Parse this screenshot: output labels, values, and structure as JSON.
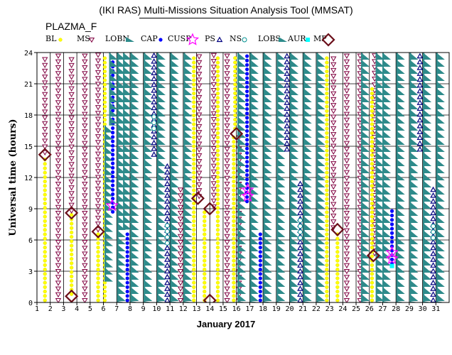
{
  "header": {
    "title": "(IKI RAS) Multi-Missions Situation Analysis Tool (MMSAT)",
    "dataset": "PLAZMA_F"
  },
  "chart_data": {
    "type": "scatter",
    "xlabel": "January 2017",
    "ylabel": "Universal time (hours)",
    "xlim": [
      1,
      32
    ],
    "ylim": [
      0,
      24
    ],
    "x_ticks": [
      1,
      2,
      3,
      4,
      5,
      6,
      7,
      8,
      9,
      10,
      11,
      12,
      13,
      14,
      15,
      16,
      17,
      18,
      19,
      20,
      21,
      22,
      23,
      24,
      25,
      26,
      27,
      28,
      29,
      30,
      31
    ],
    "y_ticks": [
      0,
      3,
      6,
      9,
      12,
      15,
      18,
      21,
      24
    ],
    "grid": true,
    "legend_position": "top",
    "legend": [
      {
        "code": "BL",
        "label": "BL",
        "color": "#ffff00",
        "marker": "dot"
      },
      {
        "code": "MS",
        "label": "MS",
        "color": "#800040",
        "marker": "triangle-down"
      },
      {
        "code": "LOBN",
        "label": "LOBN",
        "color": "#2e8b8b",
        "marker": "wedge"
      },
      {
        "code": "CAP",
        "label": "CAP",
        "color": "#0000ff",
        "marker": "filled-dot"
      },
      {
        "code": "CUSP",
        "label": "CUSP",
        "color": "#ff00ff",
        "marker": "star"
      },
      {
        "code": "PS",
        "label": "PS",
        "color": "#000080",
        "marker": "triangle-up"
      },
      {
        "code": "NS",
        "label": "NS",
        "color": "#009090",
        "marker": "circle"
      },
      {
        "code": "LOBS",
        "label": "LOBS",
        "color": "#2e8b8b",
        "marker": "wedge"
      },
      {
        "code": "AUR",
        "label": "AUR",
        "color": "#00ffff",
        "marker": "square"
      },
      {
        "code": "MP",
        "label": "MP",
        "color": "#6b0f1a",
        "marker": "diamond"
      }
    ],
    "columns": [
      {
        "type": "MS",
        "day": 1.6,
        "from": 14.2,
        "to": 24
      },
      {
        "type": "BL",
        "day": 1.6,
        "from": 0,
        "to": 14.2
      },
      {
        "type": "MS",
        "day": 2.6,
        "from": 0,
        "to": 24
      },
      {
        "type": "BL",
        "day": 3.6,
        "from": 0.6,
        "to": 8.6
      },
      {
        "type": "MS",
        "day": 3.6,
        "from": 8.6,
        "to": 24
      },
      {
        "type": "MS",
        "day": 4.6,
        "from": 0,
        "to": 24
      },
      {
        "type": "MS",
        "day": 5.6,
        "from": 6.8,
        "to": 24
      },
      {
        "type": "BL",
        "day": 5.6,
        "from": 0,
        "to": 6.8
      },
      {
        "type": "BL",
        "day": 6.1,
        "from": 0,
        "to": 24
      },
      {
        "type": "LOBS",
        "day": 6.4,
        "from": 2,
        "to": 17
      },
      {
        "type": "CAP",
        "day": 6.7,
        "from": 8.5,
        "to": 24
      },
      {
        "type": "LOBN",
        "day": 6.75,
        "from": 17,
        "to": 24
      },
      {
        "type": "LOBS",
        "day": 7.35,
        "from": 0,
        "to": 24
      },
      {
        "type": "CAP",
        "day": 7.8,
        "from": 0,
        "to": 7
      },
      {
        "type": "LOBN",
        "day": 7.8,
        "from": 7,
        "to": 24
      },
      {
        "type": "LOBS",
        "day": 8.35,
        "from": 0,
        "to": 24
      },
      {
        "type": "LOBN",
        "day": 9.35,
        "from": 0,
        "to": 24
      },
      {
        "type": "PS",
        "day": 9.8,
        "from": 14,
        "to": 24
      },
      {
        "type": "NS",
        "day": 9.8,
        "from": 16.5,
        "to": 18.5
      },
      {
        "type": "LOBN",
        "day": 10.35,
        "from": 0,
        "to": 24
      },
      {
        "type": "PS",
        "day": 10.8,
        "from": 0,
        "to": 13.5
      },
      {
        "type": "NS",
        "day": 10.8,
        "from": 5.5,
        "to": 8
      },
      {
        "type": "LOBS",
        "day": 11.35,
        "from": 0,
        "to": 24
      },
      {
        "type": "MS",
        "day": 11.8,
        "from": 0,
        "to": 11
      },
      {
        "type": "LOBN",
        "day": 12.35,
        "from": 0,
        "to": 24
      },
      {
        "type": "BL",
        "day": 12.8,
        "from": 0,
        "to": 24
      },
      {
        "type": "MS",
        "day": 13.2,
        "from": 10,
        "to": 24
      },
      {
        "type": "BL",
        "day": 13.6,
        "from": 0,
        "to": 9
      },
      {
        "type": "MS",
        "day": 14.3,
        "from": 9,
        "to": 24
      },
      {
        "type": "BL",
        "day": 14.6,
        "from": 0,
        "to": 24
      },
      {
        "type": "MS",
        "day": 15.3,
        "from": 0,
        "to": 24
      },
      {
        "type": "BL",
        "day": 15.8,
        "from": 0,
        "to": 16
      },
      {
        "type": "MS",
        "day": 16.2,
        "from": 0,
        "to": 16
      },
      {
        "type": "BL",
        "day": 15.9,
        "from": 16.5,
        "to": 24
      },
      {
        "type": "LOBN",
        "day": 16.4,
        "from": 0,
        "to": 24
      },
      {
        "type": "CAP",
        "day": 16.8,
        "from": 9.5,
        "to": 24
      },
      {
        "type": "LOBN",
        "day": 17.35,
        "from": 0,
        "to": 24
      },
      {
        "type": "CAP",
        "day": 17.8,
        "from": 0,
        "to": 7
      },
      {
        "type": "LOBS",
        "day": 18.35,
        "from": 0,
        "to": 24
      },
      {
        "type": "LOBN",
        "day": 19.35,
        "from": 0,
        "to": 24
      },
      {
        "type": "PS",
        "day": 19.8,
        "from": 14.5,
        "to": 24
      },
      {
        "type": "LOBS",
        "day": 20.35,
        "from": 0,
        "to": 24
      },
      {
        "type": "PS",
        "day": 20.8,
        "from": 0,
        "to": 12
      },
      {
        "type": "NS",
        "day": 20.8,
        "from": 6,
        "to": 8.5
      },
      {
        "type": "LOBN",
        "day": 21.35,
        "from": 0,
        "to": 24
      },
      {
        "type": "LOBN",
        "day": 22.35,
        "from": 0,
        "to": 24
      },
      {
        "type": "BL",
        "day": 22.8,
        "from": 0,
        "to": 24
      },
      {
        "type": "MS",
        "day": 23.3,
        "from": 7,
        "to": 24
      },
      {
        "type": "BL",
        "day": 23.6,
        "from": 0,
        "to": 7
      },
      {
        "type": "MS",
        "day": 24.3,
        "from": 0,
        "to": 24
      },
      {
        "type": "MS",
        "day": 25.3,
        "from": 0,
        "to": 24
      },
      {
        "type": "LOBS",
        "day": 25.7,
        "from": 0,
        "to": 24
      },
      {
        "type": "MS",
        "day": 26.4,
        "from": 4.5,
        "to": 24
      },
      {
        "type": "BL",
        "day": 26.2,
        "from": 0,
        "to": 21
      },
      {
        "type": "LOBS",
        "day": 26.8,
        "from": 0,
        "to": 24
      },
      {
        "type": "CAP",
        "day": 27.7,
        "from": 3.5,
        "to": 9
      },
      {
        "type": "LOBN",
        "day": 27.3,
        "from": 0,
        "to": 24
      },
      {
        "type": "LOBS",
        "day": 28.35,
        "from": 0,
        "to": 24
      },
      {
        "type": "LOBN",
        "day": 29.35,
        "from": 0,
        "to": 24
      },
      {
        "type": "PS",
        "day": 29.8,
        "from": 14.5,
        "to": 24
      },
      {
        "type": "LOBS",
        "day": 30.35,
        "from": 0,
        "to": 24
      },
      {
        "type": "PS",
        "day": 30.8,
        "from": 0,
        "to": 11
      },
      {
        "type": "NS",
        "day": 30.8,
        "from": 6,
        "to": 8
      },
      {
        "type": "LOBN",
        "day": 31.35,
        "from": 0,
        "to": 24
      }
    ],
    "markers": [
      {
        "type": "MP",
        "day": 1.6,
        "hour": 14.2
      },
      {
        "type": "MP",
        "day": 3.6,
        "hour": 8.6
      },
      {
        "type": "MP",
        "day": 3.6,
        "hour": 0.6
      },
      {
        "type": "MP",
        "day": 5.6,
        "hour": 6.8
      },
      {
        "type": "CUSP",
        "day": 6.65,
        "hour": 9.3
      },
      {
        "type": "MP",
        "day": 13.1,
        "hour": 10.0
      },
      {
        "type": "MP",
        "day": 14.0,
        "hour": 9.0
      },
      {
        "type": "MP",
        "day": 14.0,
        "hour": 0.2
      },
      {
        "type": "MP",
        "day": 16.0,
        "hour": 16.2
      },
      {
        "type": "CUSP",
        "day": 16.85,
        "hour": 10.8
      },
      {
        "type": "CUSP",
        "day": 16.85,
        "hour": 10.2
      },
      {
        "type": "MP",
        "day": 23.6,
        "hour": 7.0
      },
      {
        "type": "MP",
        "day": 26.3,
        "hour": 4.5
      },
      {
        "type": "CUSP",
        "day": 27.7,
        "hour": 4.8
      },
      {
        "type": "CUSP",
        "day": 27.7,
        "hour": 4.2
      },
      {
        "type": "AUR",
        "day": 27.7,
        "hour": 3.5
      }
    ]
  }
}
